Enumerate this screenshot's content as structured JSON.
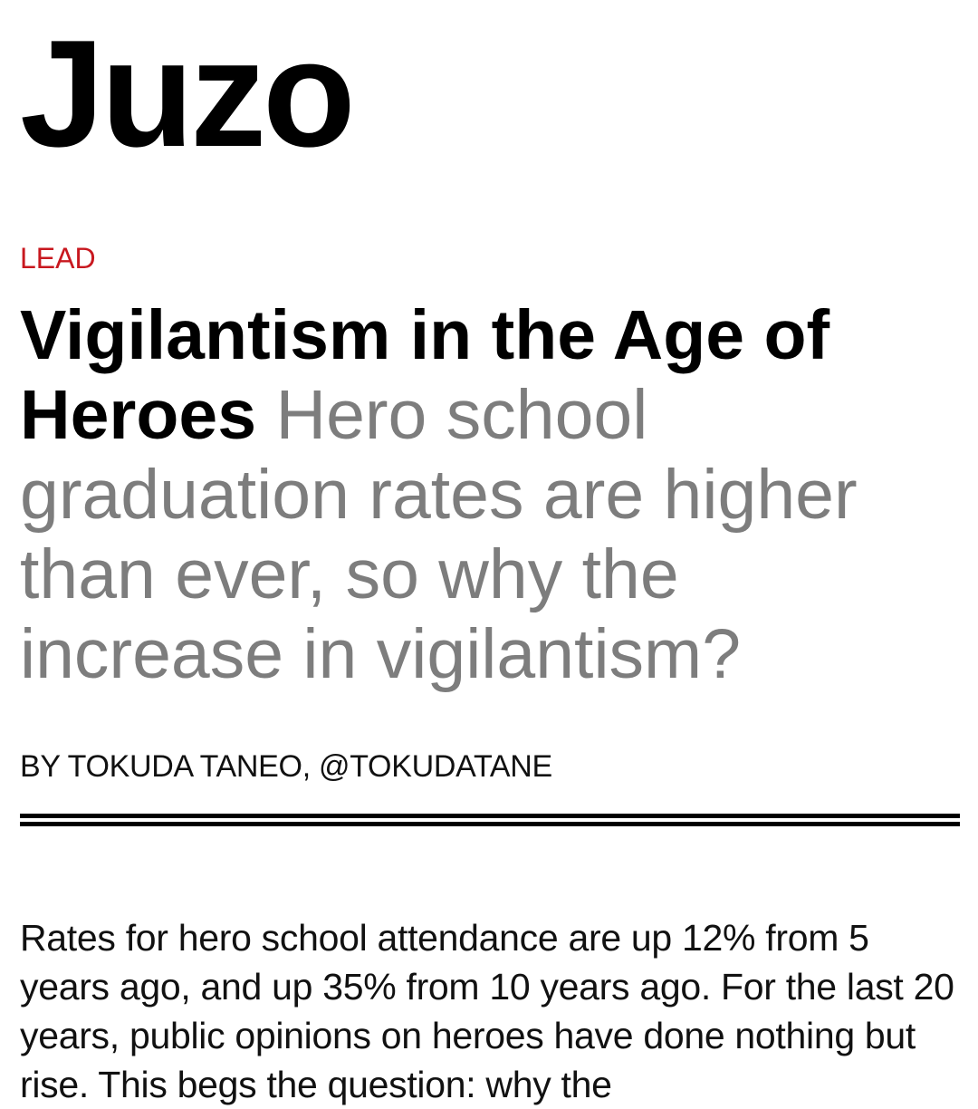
{
  "publication": {
    "name": "Juzo"
  },
  "article": {
    "section": "LEAD",
    "title": "Vigilantism in the Age of Heroes",
    "dek": "Hero school graduation rates are higher than ever, so why the increase in vigilantism?",
    "byline": "BY TOKUDA TANEO, @TOKUDATANE",
    "body": "Rates for hero school attendance are up 12% from 5 years ago, and up 35% from 10 years ago. For the last 20 years, public opinions on heroes have done nothing but rise. This begs the question: why the"
  },
  "colors": {
    "section": "#c8181f",
    "dek": "#7d7d7d",
    "text": "#000000"
  }
}
